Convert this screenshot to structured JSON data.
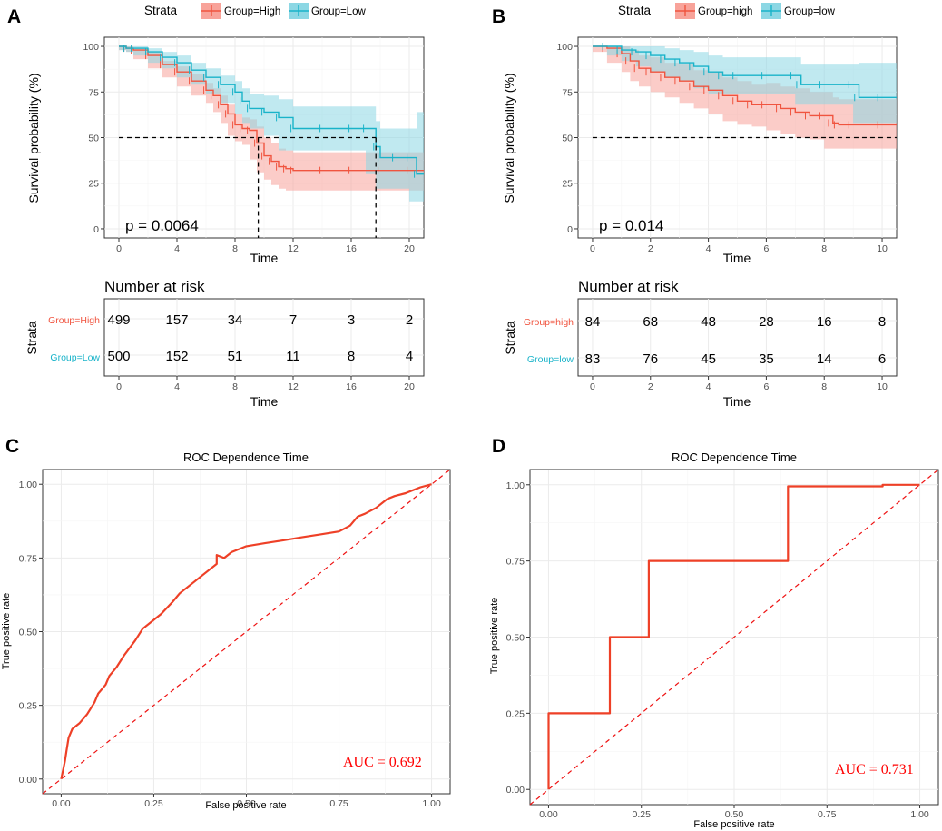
{
  "colors": {
    "high": "#F0543F",
    "low": "#19B3C9",
    "high_fill": "#F8A39A",
    "low_fill": "#8CD7E4",
    "roc": "#EE4027",
    "diag": "#EE1111",
    "auc": "#FF0000"
  },
  "chart_data": [
    {
      "panel": "A",
      "type": "line",
      "subtype": "kaplan-meier",
      "legend_title": "Strata",
      "legend": [
        "Group=High",
        "Group=Low"
      ],
      "xlabel": "Time",
      "ylabel": "Survival probability (%)",
      "xlim": [
        -1,
        21
      ],
      "ylim": [
        -5,
        105
      ],
      "x_ticks": [
        "0",
        "4",
        "8",
        "12",
        "16",
        "20"
      ],
      "y_ticks": [
        "0",
        "25",
        "50",
        "75",
        "100"
      ],
      "p_value": "p = 0.0064",
      "median_line": {
        "y": 50,
        "x_high": 9.6,
        "x_low": 17.7
      },
      "series": [
        {
          "name": "Group=High",
          "x": [
            0,
            0.5,
            1,
            2,
            3,
            4,
            5,
            6,
            6.5,
            7,
            7.5,
            8,
            8.5,
            9,
            9.5,
            10,
            10.5,
            11,
            11.5,
            12,
            14,
            16,
            18,
            20,
            21
          ],
          "y": [
            100,
            99,
            98,
            95,
            90,
            86,
            81,
            76,
            73,
            68,
            63,
            57,
            55,
            54,
            47,
            40,
            37,
            34,
            33,
            32,
            32,
            32,
            32,
            32,
            32
          ],
          "lower": [
            100,
            98,
            97,
            93,
            88,
            83,
            78,
            73,
            69,
            64,
            58,
            51,
            48,
            46,
            38,
            31,
            27,
            24,
            22,
            21,
            21,
            21,
            21,
            21,
            21
          ],
          "upper": [
            100,
            100,
            99,
            97,
            92,
            89,
            85,
            80,
            77,
            73,
            68,
            63,
            61,
            60,
            56,
            50,
            47,
            44,
            43,
            42,
            42,
            42,
            42,
            42,
            42
          ]
        },
        {
          "name": "Group=Low",
          "x": [
            0,
            0.5,
            1,
            2,
            3,
            4,
            5,
            6,
            7,
            8,
            8.5,
            9,
            10,
            11,
            12,
            14,
            16,
            17,
            17.7,
            18,
            19,
            20,
            20.5,
            21
          ],
          "y": [
            100,
            99,
            99,
            97,
            94,
            91,
            87,
            83,
            79,
            75,
            70,
            66,
            64,
            61,
            55,
            55,
            55,
            55,
            45,
            39,
            39,
            39,
            30,
            30
          ],
          "lower": [
            100,
            98,
            97,
            95,
            91,
            88,
            83,
            79,
            74,
            69,
            63,
            58,
            55,
            51,
            43,
            43,
            43,
            43,
            30,
            22,
            22,
            22,
            15,
            15
          ],
          "upper": [
            100,
            100,
            100,
            99,
            97,
            95,
            91,
            88,
            84,
            81,
            77,
            74,
            73,
            71,
            67,
            67,
            67,
            67,
            59,
            55,
            55,
            55,
            64,
            64
          ]
        }
      ],
      "risk_table": {
        "title": "Number at risk",
        "ylabel": "Strata",
        "xlabel": "Time",
        "rows": [
          {
            "label": "Group=High",
            "values": [
              "499",
              "157",
              "34",
              "7",
              "3",
              "2"
            ]
          },
          {
            "label": "Group=Low",
            "values": [
              "500",
              "152",
              "51",
              "11",
              "8",
              "4"
            ]
          }
        ]
      }
    },
    {
      "panel": "B",
      "type": "line",
      "subtype": "kaplan-meier",
      "legend_title": "Strata",
      "legend": [
        "Group=high",
        "Group=low"
      ],
      "xlabel": "Time",
      "ylabel": "Survival probability (%)",
      "xlim": [
        -0.5,
        10.5
      ],
      "ylim": [
        -5,
        105
      ],
      "x_ticks": [
        "0",
        "2",
        "4",
        "6",
        "8",
        "10"
      ],
      "y_ticks": [
        "0",
        "25",
        "50",
        "75",
        "100"
      ],
      "p_value": "p = 0.014",
      "median_line": {
        "y": 50
      },
      "series": [
        {
          "name": "Group=high",
          "x": [
            0,
            0.5,
            1,
            1.3,
            1.6,
            2,
            2.5,
            3,
            3.5,
            4,
            4.5,
            5,
            5.5,
            6,
            6.5,
            7,
            7.5,
            8,
            8.3,
            8.5,
            9,
            10,
            10.5
          ],
          "y": [
            100,
            99,
            96,
            92,
            88,
            86,
            83,
            81,
            78,
            76,
            73,
            70,
            68,
            68,
            66,
            64,
            62,
            62,
            58,
            57,
            57,
            57,
            57
          ],
          "lower": [
            100,
            97,
            91,
            86,
            81,
            78,
            75,
            72,
            69,
            66,
            63,
            59,
            57,
            56,
            54,
            52,
            50,
            49,
            44,
            44,
            44,
            44,
            44
          ],
          "upper": [
            100,
            100,
            100,
            98,
            95,
            94,
            91,
            90,
            87,
            86,
            83,
            81,
            79,
            80,
            78,
            77,
            75,
            75,
            72,
            71,
            71,
            71,
            71
          ]
        },
        {
          "name": "Group=low",
          "x": [
            0,
            0.5,
            1,
            1.5,
            2,
            2.5,
            3,
            3.5,
            4,
            4.5,
            5,
            6,
            7,
            7.2,
            8,
            9,
            9.2,
            10,
            10.5
          ],
          "y": [
            100,
            100,
            98,
            97,
            95,
            93,
            91,
            89,
            86,
            84,
            84,
            84,
            84,
            79,
            79,
            79,
            72,
            72,
            72
          ],
          "lower": [
            100,
            100,
            95,
            92,
            89,
            86,
            83,
            81,
            77,
            74,
            74,
            74,
            74,
            68,
            68,
            68,
            58,
            58,
            58
          ],
          "upper": [
            100,
            100,
            100,
            100,
            100,
            99,
            98,
            97,
            95,
            94,
            94,
            94,
            94,
            90,
            90,
            90,
            91,
            91,
            91
          ]
        }
      ],
      "risk_table": {
        "title": "Number at risk",
        "ylabel": "Strata",
        "xlabel": "Time",
        "rows": [
          {
            "label": "Group=high",
            "values": [
              "84",
              "68",
              "48",
              "28",
              "16",
              "8"
            ]
          },
          {
            "label": "Group=low",
            "values": [
              "83",
              "76",
              "45",
              "35",
              "14",
              "6"
            ]
          }
        ]
      }
    },
    {
      "panel": "C",
      "type": "line",
      "subtype": "roc",
      "title": "ROC Dependence Time",
      "xlabel": "False positive rate",
      "ylabel": "True positive rate",
      "xlim": [
        -0.05,
        1.05
      ],
      "ylim": [
        -0.05,
        1.05
      ],
      "x_ticks": [
        "0.00",
        "0.25",
        "0.50",
        "0.75",
        "1.00"
      ],
      "y_ticks": [
        "0.00",
        "0.25",
        "0.50",
        "0.75",
        "1.00"
      ],
      "auc_label": "AUC = 0.692",
      "fpr": [
        0,
        0.005,
        0.01,
        0.015,
        0.02,
        0.03,
        0.05,
        0.07,
        0.09,
        0.1,
        0.12,
        0.13,
        0.15,
        0.17,
        0.2,
        0.22,
        0.25,
        0.27,
        0.3,
        0.32,
        0.34,
        0.36,
        0.38,
        0.4,
        0.42,
        0.42,
        0.44,
        0.46,
        0.5,
        0.55,
        0.6,
        0.65,
        0.7,
        0.75,
        0.78,
        0.8,
        0.82,
        0.85,
        0.88,
        0.9,
        0.93,
        0.95,
        0.97,
        1.0
      ],
      "tpr": [
        0,
        0.03,
        0.06,
        0.1,
        0.14,
        0.17,
        0.19,
        0.22,
        0.26,
        0.29,
        0.32,
        0.35,
        0.38,
        0.42,
        0.47,
        0.51,
        0.54,
        0.56,
        0.6,
        0.63,
        0.65,
        0.67,
        0.69,
        0.71,
        0.73,
        0.76,
        0.75,
        0.77,
        0.79,
        0.8,
        0.81,
        0.82,
        0.83,
        0.84,
        0.86,
        0.89,
        0.9,
        0.92,
        0.95,
        0.96,
        0.97,
        0.98,
        0.99,
        1.0
      ]
    },
    {
      "panel": "D",
      "type": "line",
      "subtype": "roc",
      "title": "ROC Dependence Time",
      "xlabel": "False positive rate",
      "ylabel": "True positive rate",
      "xlim": [
        -0.05,
        1.05
      ],
      "ylim": [
        -0.05,
        1.05
      ],
      "x_ticks": [
        "0.00",
        "0.25",
        "0.50",
        "0.75",
        "1.00"
      ],
      "y_ticks": [
        "0.00",
        "0.25",
        "0.50",
        "0.75",
        "1.00"
      ],
      "auc_label": "AUC = 0.731",
      "fpr": [
        0,
        0,
        0.165,
        0.165,
        0.27,
        0.27,
        0.645,
        0.645,
        0.9,
        0.9,
        1.0
      ],
      "tpr": [
        0,
        0.25,
        0.25,
        0.5,
        0.5,
        0.75,
        0.75,
        0.995,
        0.995,
        1.0,
        1.0
      ]
    }
  ]
}
